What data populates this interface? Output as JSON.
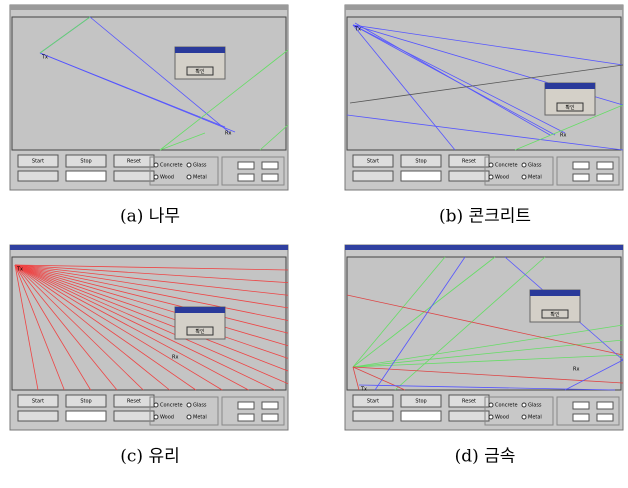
{
  "panels": [
    {
      "caption": "(a) 나무",
      "buttons": [
        "Start",
        "Stop",
        "Reset"
      ],
      "materials": [
        "Concrete",
        "Glass",
        "Wood",
        "Metal"
      ],
      "tx": "Tx",
      "rx": "Rx",
      "dialog_button": "확인"
    },
    {
      "caption": "(b) 콘크리트",
      "buttons": [
        "Start",
        "Stop",
        "Reset"
      ],
      "materials": [
        "Concrete",
        "Glass",
        "Wood",
        "Metal"
      ],
      "tx": "Tx",
      "rx": "Rx",
      "dialog_button": "확인"
    },
    {
      "caption": "(c) 유리",
      "buttons": [
        "Start",
        "Stop",
        "Reset"
      ],
      "materials": [
        "Concrete",
        "Glass",
        "Wood",
        "Metal"
      ],
      "tx": "Tx",
      "rx": "Rx",
      "dialog_button": "확인"
    },
    {
      "caption": "(d) 금속",
      "buttons": [
        "Start",
        "Stop",
        "Reset"
      ],
      "materials": [
        "Concrete",
        "Glass",
        "Wood",
        "Metal"
      ],
      "tx": "Tx",
      "rx": "Rx",
      "dialog_button": "확인"
    }
  ]
}
